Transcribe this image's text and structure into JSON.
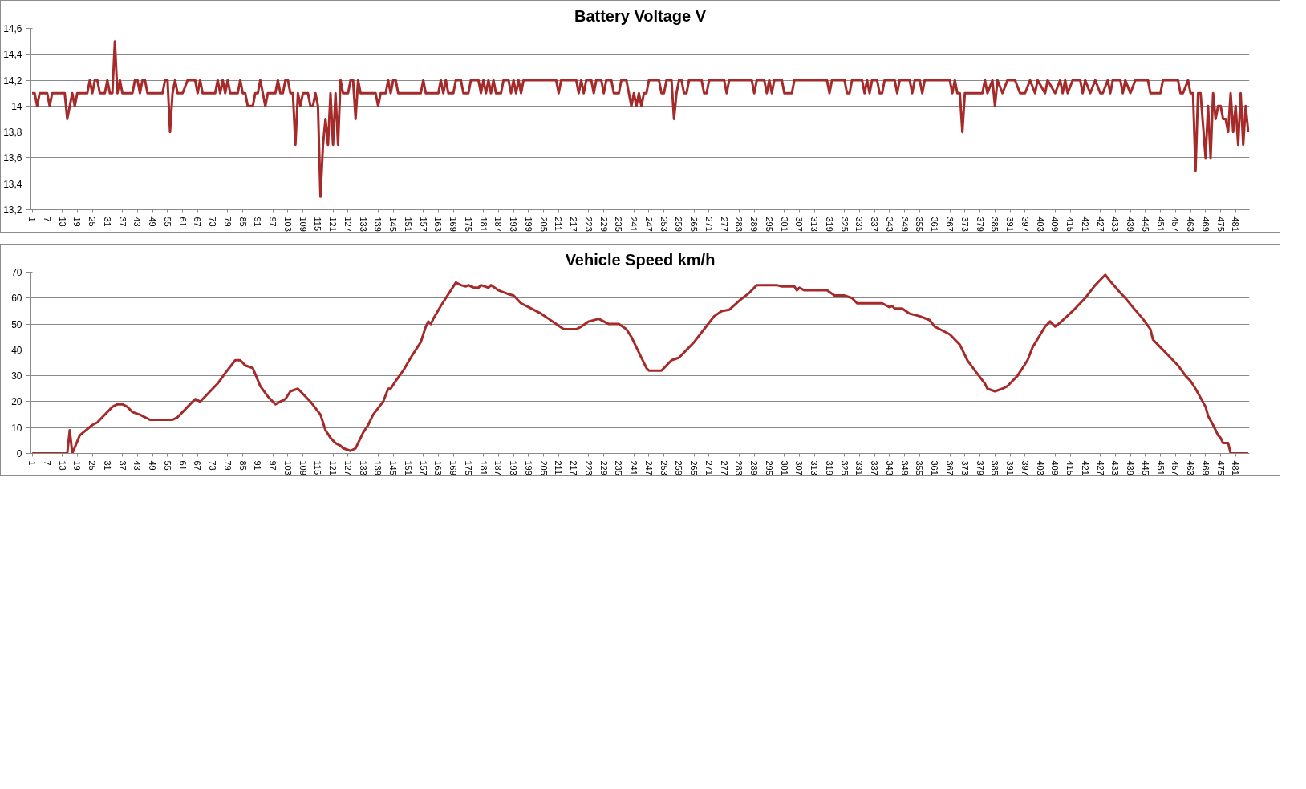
{
  "chart_data": [
    {
      "type": "line",
      "title": "Battery Voltage V",
      "color": "#a52a2a",
      "grid": "y",
      "xlim": [
        0.5,
        486.5
      ],
      "ylim": [
        13.2,
        14.6
      ],
      "yticks": [
        {
          "value": 13.2,
          "label": "13,2"
        },
        {
          "value": 13.4,
          "label": "13,4"
        },
        {
          "value": 13.6,
          "label": "13,6"
        },
        {
          "value": 13.8,
          "label": "13,8"
        },
        14,
        {
          "value": 14.2,
          "label": "14,2"
        },
        {
          "value": 14.4,
          "label": "14,4"
        },
        {
          "value": 14.6,
          "label": "14,6"
        }
      ],
      "xticks": [
        1,
        7,
        13,
        19,
        25,
        31,
        37,
        43,
        49,
        55,
        61,
        67,
        73,
        79,
        85,
        91,
        97,
        103,
        109,
        115,
        121,
        127,
        133,
        139,
        145,
        151,
        157,
        163,
        169,
        175,
        181,
        187,
        193,
        199,
        205,
        211,
        217,
        223,
        229,
        235,
        241,
        247,
        253,
        259,
        265,
        271,
        277,
        283,
        289,
        295,
        301,
        307,
        313,
        319,
        325,
        331,
        337,
        343,
        349,
        355,
        361,
        367,
        373,
        379,
        385,
        391,
        397,
        403,
        409,
        415,
        421,
        427,
        433,
        439,
        445,
        451,
        457,
        463,
        469,
        475,
        481
      ],
      "x": [
        1,
        2,
        3,
        4,
        7,
        8,
        9,
        14,
        15,
        17,
        18,
        19,
        23,
        24,
        25,
        26,
        27,
        28,
        30,
        31,
        32,
        33,
        34,
        35,
        36,
        37,
        41,
        42,
        43,
        44,
        45,
        46,
        47,
        53,
        54,
        55,
        56,
        57,
        58,
        59,
        61,
        63,
        66,
        67,
        68,
        69,
        74,
        75,
        76,
        77,
        78,
        79,
        80,
        83,
        84,
        85,
        86,
        87,
        89,
        90,
        91,
        92,
        93,
        94,
        95,
        98,
        99,
        100,
        101,
        102,
        103,
        104,
        105,
        106,
        107,
        108,
        109,
        111,
        112,
        113,
        114,
        115,
        116,
        117,
        118,
        119,
        120,
        121,
        122,
        123,
        124,
        125,
        127,
        128,
        129,
        130,
        131,
        132,
        138,
        139,
        140,
        142,
        143,
        144,
        145,
        146,
        147,
        156,
        157,
        158,
        163,
        164,
        165,
        166,
        167,
        169,
        170,
        172,
        173,
        175,
        176,
        179,
        180,
        181,
        182,
        183,
        184,
        185,
        186,
        188,
        189,
        191,
        192,
        193,
        194,
        195,
        196,
        197,
        210,
        211,
        212,
        218,
        219,
        220,
        221,
        222,
        224,
        225,
        226,
        228,
        229,
        230,
        232,
        233,
        235,
        236,
        238,
        239,
        240,
        241,
        242,
        243,
        244,
        245,
        246,
        247,
        251,
        252,
        253,
        254,
        256,
        257,
        258,
        259,
        260,
        261,
        262,
        263,
        268,
        269,
        270,
        271,
        277,
        278,
        279,
        288,
        289,
        290,
        293,
        294,
        295,
        296,
        297,
        300,
        301,
        304,
        305,
        318,
        319,
        320,
        325,
        326,
        327,
        328,
        332,
        333,
        334,
        335,
        336,
        338,
        339,
        340,
        341,
        345,
        346,
        347,
        351,
        352,
        353,
        355,
        356,
        357,
        367,
        368,
        369,
        370,
        371,
        372,
        373,
        380,
        381,
        382,
        384,
        385,
        386,
        388,
        390,
        393,
        395,
        397,
        399,
        401,
        402,
        405,
        406,
        409,
        411,
        412,
        413,
        414,
        416,
        419,
        420,
        421,
        423,
        425,
        427,
        428,
        430,
        431,
        432,
        435,
        436,
        437,
        439,
        441,
        446,
        447,
        451,
        452,
        458,
        459,
        460,
        462,
        463,
        464,
        465,
        466,
        467,
        469,
        470,
        471,
        472,
        473,
        474,
        475,
        476,
        477,
        478,
        479,
        480,
        481,
        482,
        483,
        484,
        485,
        486
      ],
      "values": [
        14.1,
        14.1,
        14.0,
        14.1,
        14.1,
        14.0,
        14.1,
        14.1,
        13.9,
        14.1,
        14.0,
        14.1,
        14.1,
        14.2,
        14.1,
        14.2,
        14.2,
        14.1,
        14.1,
        14.2,
        14.1,
        14.1,
        14.5,
        14.1,
        14.2,
        14.1,
        14.1,
        14.2,
        14.2,
        14.1,
        14.2,
        14.2,
        14.1,
        14.1,
        14.2,
        14.2,
        13.8,
        14.1,
        14.2,
        14.1,
        14.1,
        14.2,
        14.2,
        14.1,
        14.2,
        14.1,
        14.1,
        14.2,
        14.1,
        14.2,
        14.1,
        14.2,
        14.1,
        14.1,
        14.2,
        14.1,
        14.1,
        14.0,
        14.0,
        14.1,
        14.1,
        14.2,
        14.1,
        14.0,
        14.1,
        14.1,
        14.2,
        14.1,
        14.1,
        14.2,
        14.2,
        14.1,
        14.1,
        13.7,
        14.1,
        14.0,
        14.1,
        14.1,
        14.0,
        14.0,
        14.1,
        14.0,
        13.3,
        13.7,
        13.9,
        13.7,
        14.1,
        13.7,
        14.1,
        13.7,
        14.2,
        14.1,
        14.1,
        14.2,
        14.2,
        13.9,
        14.2,
        14.1,
        14.1,
        14.0,
        14.1,
        14.1,
        14.2,
        14.1,
        14.2,
        14.2,
        14.1,
        14.1,
        14.2,
        14.1,
        14.1,
        14.2,
        14.1,
        14.2,
        14.1,
        14.1,
        14.2,
        14.2,
        14.1,
        14.1,
        14.2,
        14.2,
        14.1,
        14.2,
        14.1,
        14.2,
        14.1,
        14.2,
        14.1,
        14.1,
        14.2,
        14.2,
        14.1,
        14.2,
        14.1,
        14.2,
        14.1,
        14.2,
        14.2,
        14.1,
        14.2,
        14.2,
        14.1,
        14.2,
        14.1,
        14.2,
        14.2,
        14.1,
        14.2,
        14.2,
        14.1,
        14.2,
        14.2,
        14.1,
        14.1,
        14.2,
        14.2,
        14.1,
        14.0,
        14.1,
        14.0,
        14.1,
        14.0,
        14.1,
        14.1,
        14.2,
        14.2,
        14.1,
        14.1,
        14.2,
        14.2,
        13.9,
        14.1,
        14.2,
        14.2,
        14.1,
        14.1,
        14.2,
        14.2,
        14.1,
        14.1,
        14.2,
        14.2,
        14.1,
        14.2,
        14.2,
        14.1,
        14.2,
        14.2,
        14.1,
        14.2,
        14.1,
        14.2,
        14.2,
        14.1,
        14.1,
        14.2,
        14.2,
        14.1,
        14.2,
        14.2,
        14.1,
        14.1,
        14.2,
        14.2,
        14.1,
        14.2,
        14.1,
        14.2,
        14.2,
        14.1,
        14.1,
        14.2,
        14.2,
        14.1,
        14.2,
        14.2,
        14.1,
        14.2,
        14.2,
        14.1,
        14.2,
        14.2,
        14.1,
        14.2,
        14.1,
        14.1,
        13.8,
        14.1,
        14.1,
        14.2,
        14.1,
        14.2,
        14.0,
        14.2,
        14.1,
        14.2,
        14.2,
        14.1,
        14.1,
        14.2,
        14.1,
        14.2,
        14.1,
        14.2,
        14.1,
        14.2,
        14.1,
        14.2,
        14.1,
        14.2,
        14.2,
        14.1,
        14.2,
        14.1,
        14.2,
        14.1,
        14.1,
        14.2,
        14.1,
        14.2,
        14.2,
        14.1,
        14.2,
        14.1,
        14.2,
        14.2,
        14.1,
        14.1,
        14.2,
        14.2,
        14.1,
        14.1,
        14.2,
        14.1,
        14.1,
        13.5,
        14.1,
        14.1,
        13.6,
        14.0,
        13.6,
        14.1,
        13.9,
        14.0,
        14.0,
        13.9,
        13.9,
        13.8,
        14.1,
        13.8,
        14.0,
        13.7,
        14.1,
        13.7,
        14.0,
        13.8
      ]
    },
    {
      "type": "line",
      "title": "Vehicle Speed km/h",
      "color": "#a52a2a",
      "grid": "y",
      "xlim": [
        0.5,
        486.5
      ],
      "ylim": [
        0,
        70
      ],
      "yticks": [
        0,
        10,
        20,
        30,
        40,
        50,
        60,
        70
      ],
      "xticks": [
        1,
        7,
        13,
        19,
        25,
        31,
        37,
        43,
        49,
        55,
        61,
        67,
        73,
        79,
        85,
        91,
        97,
        103,
        109,
        115,
        121,
        127,
        133,
        139,
        145,
        151,
        157,
        163,
        169,
        175,
        181,
        187,
        193,
        199,
        205,
        211,
        217,
        223,
        229,
        235,
        241,
        247,
        253,
        259,
        265,
        271,
        277,
        283,
        289,
        295,
        301,
        307,
        313,
        319,
        325,
        331,
        337,
        343,
        349,
        355,
        361,
        367,
        373,
        379,
        385,
        391,
        397,
        403,
        409,
        415,
        421,
        427,
        433,
        439,
        445,
        451,
        457,
        463,
        469,
        475,
        481
      ],
      "x": [
        1,
        15,
        16,
        17,
        20,
        25,
        27,
        29,
        33,
        35,
        37,
        39,
        41,
        44,
        46,
        48,
        57,
        59,
        61,
        63,
        66,
        68,
        71,
        75,
        78,
        82,
        84,
        86,
        89,
        92,
        95,
        98,
        100,
        102,
        104,
        107,
        109,
        112,
        116,
        118,
        120,
        122,
        124,
        125,
        128,
        130,
        133,
        135,
        137,
        141,
        143,
        144,
        146,
        149,
        152,
        156,
        158,
        159,
        160,
        161,
        164,
        170,
        172,
        174,
        175,
        177,
        179,
        180,
        183,
        184,
        187,
        191,
        193,
        196,
        200,
        204,
        207,
        210,
        213,
        218,
        220,
        223,
        227,
        229,
        231,
        235,
        238,
        240,
        244,
        246,
        247,
        249,
        252,
        256,
        259,
        262,
        265,
        269,
        273,
        276,
        279,
        283,
        287,
        290,
        298,
        300,
        305,
        306,
        307,
        309,
        318,
        321,
        325,
        328,
        330,
        332,
        340,
        343,
        344,
        345,
        348,
        351,
        355,
        359,
        361,
        363,
        367,
        371,
        374,
        377,
        381,
        382,
        385,
        388,
        390,
        394,
        398,
        400,
        405,
        407,
        409,
        411,
        416,
        421,
        425,
        429,
        431,
        435,
        437,
        440,
        444,
        447,
        448,
        451,
        454,
        458,
        461,
        463,
        465,
        469,
        470,
        472,
        474,
        475,
        476,
        478,
        479,
        486
      ],
      "values": [
        0,
        0,
        9,
        0,
        7,
        11,
        12,
        14,
        18,
        19,
        19,
        18,
        16,
        15,
        14,
        13,
        13,
        14,
        16,
        18,
        21,
        20,
        23,
        27,
        31,
        36,
        36,
        34,
        33,
        26,
        22,
        19,
        20,
        21,
        24,
        25,
        23,
        20,
        15,
        9,
        6,
        4,
        3,
        2,
        1,
        2,
        8,
        11,
        15,
        20,
        25,
        25,
        28,
        32,
        37,
        43,
        49,
        51,
        50,
        52,
        57,
        66,
        65,
        64.5,
        65,
        64,
        64,
        65,
        64,
        65,
        63,
        61.5,
        61,
        58,
        56,
        54,
        52,
        50,
        48,
        48,
        49,
        51,
        52,
        51,
        50,
        50,
        48,
        45,
        37,
        33,
        32,
        32,
        32,
        36,
        37,
        40,
        43,
        48,
        53,
        55,
        55.5,
        59,
        62,
        65,
        65,
        64.5,
        64.5,
        63,
        64,
        63,
        63,
        61,
        61,
        60,
        58,
        58,
        58,
        56.5,
        57,
        56,
        56,
        54,
        53,
        51.5,
        49,
        48,
        46,
        42,
        36,
        32,
        27,
        25,
        24,
        25,
        26,
        30,
        36,
        41,
        49,
        51,
        49,
        50.5,
        55,
        60,
        65,
        69,
        66.5,
        62,
        60,
        56.5,
        52,
        48,
        44,
        41,
        38,
        34,
        30,
        28,
        25,
        18,
        14.5,
        11,
        7,
        6,
        4,
        4,
        0,
        0
      ]
    }
  ]
}
